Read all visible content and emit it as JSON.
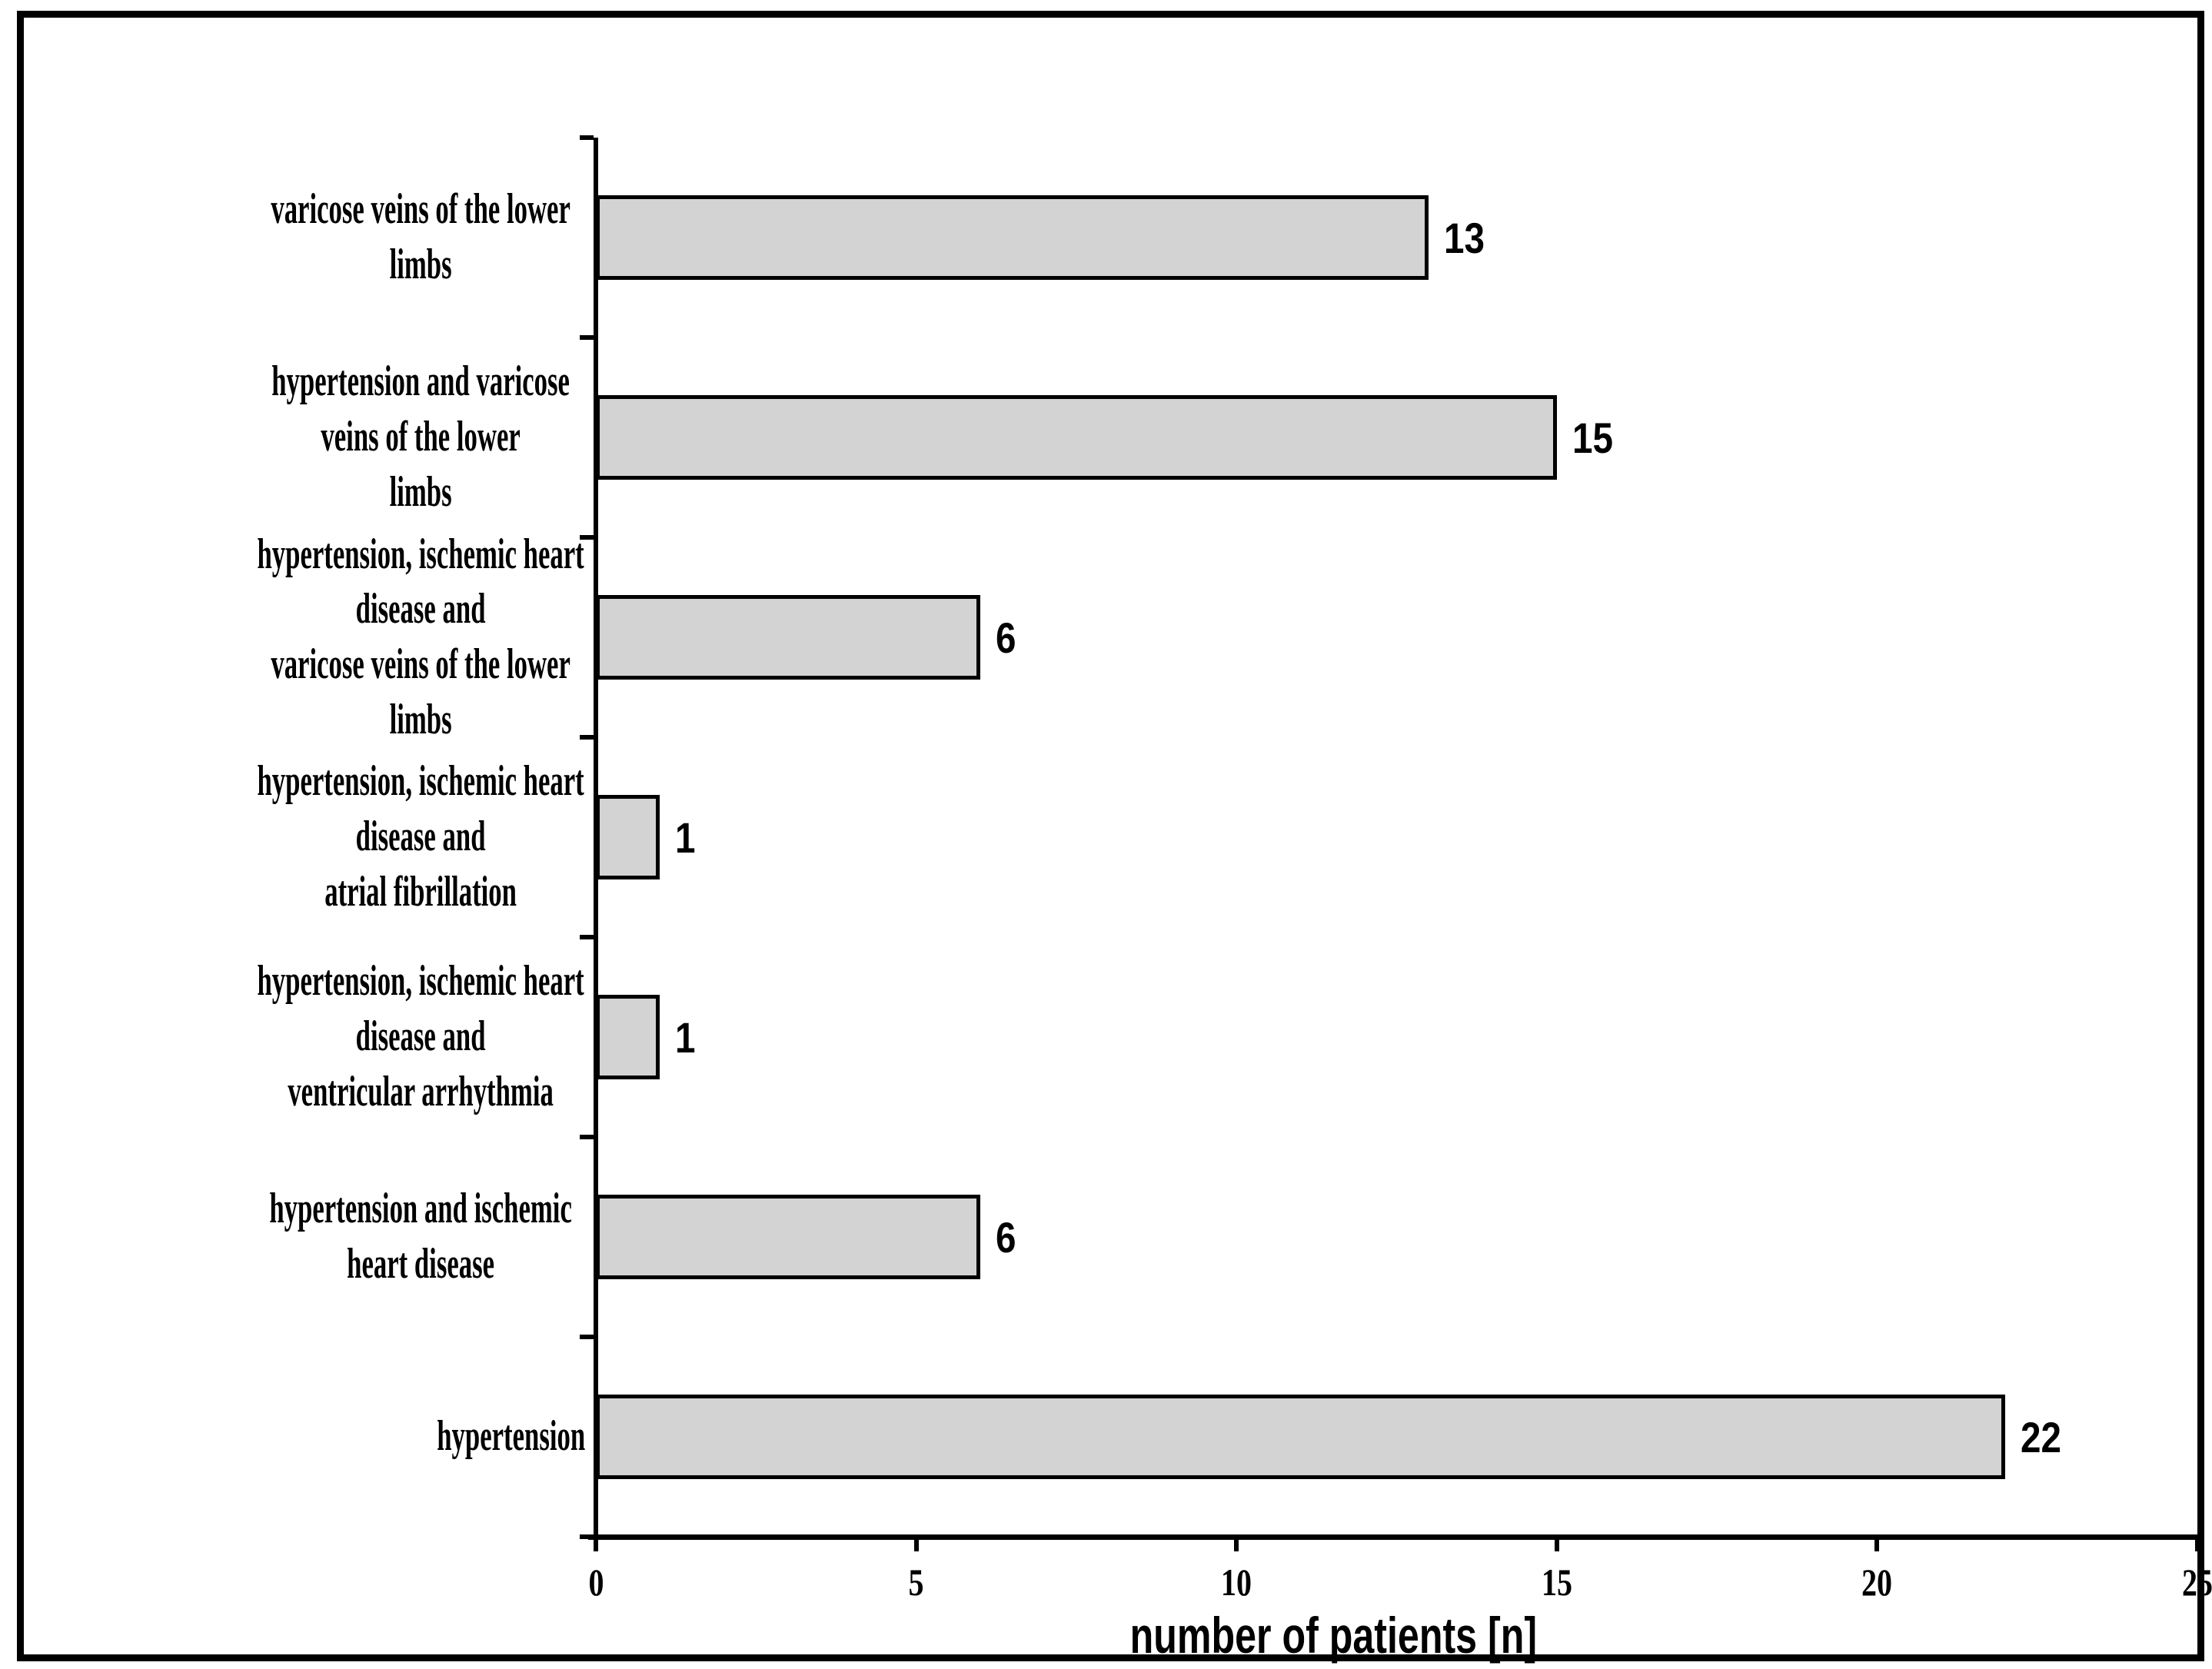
{
  "chart_data": {
    "type": "bar",
    "orientation": "horizontal",
    "title": "",
    "xlabel": "number of patients [n]",
    "ylabel": "",
    "categories": [
      "varicose veins of the lower limbs",
      "hypertension and varicose veins of the lower\nlimbs",
      "hypertension, ischemic heart disease and\nvaricose veins of the lower limbs",
      "hypertension, ischemic heart disease and\natrial fibrillation",
      "hypertension, ischemic heart disease and\nventricular arrhythmia",
      "hypertension and ischemic heart disease",
      "hypertension"
    ],
    "values": [
      13,
      15,
      6,
      1,
      1,
      6,
      22
    ],
    "data_labels": [
      "13",
      "15",
      "6",
      "1",
      "1",
      "6",
      "22"
    ],
    "xlim": [
      0,
      25
    ],
    "xticks": [
      0,
      5,
      10,
      15,
      20,
      25
    ],
    "grid": false,
    "legend": null,
    "bar_fill_color": "#d3d3d3",
    "bar_border_color": "#000000",
    "axis_color": "#000000",
    "frame_color": "#000000",
    "background_color": "#ffffff"
  }
}
